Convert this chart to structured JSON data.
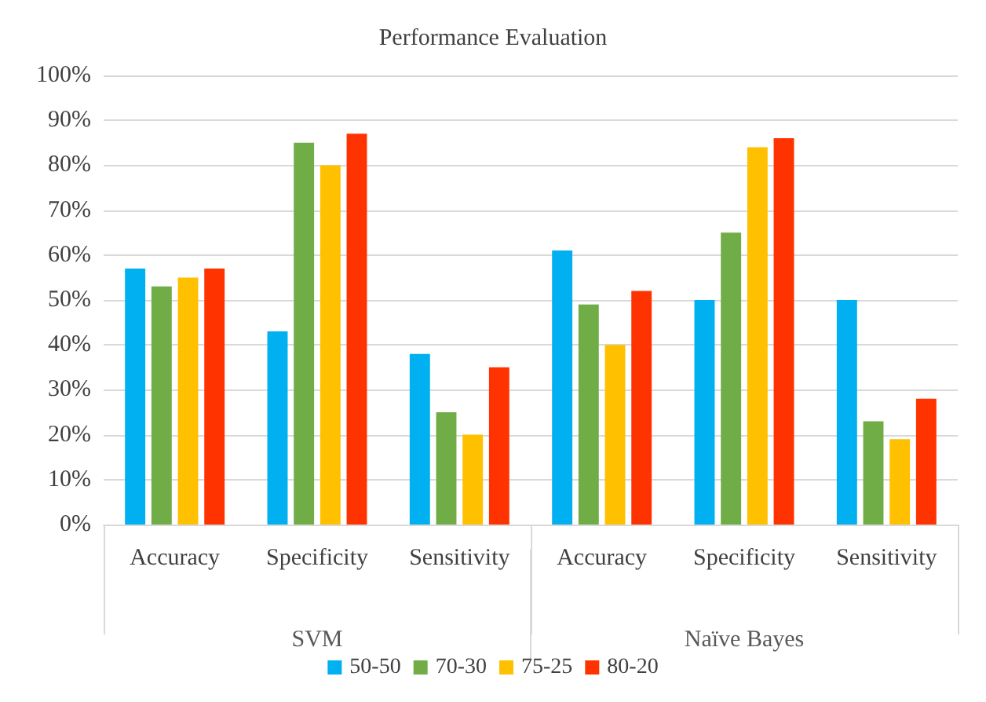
{
  "chart_data": {
    "type": "bar",
    "title": "Performance Evaluation",
    "categories": [
      "Accuracy",
      "Specificity",
      "Sensitivity",
      "Accuracy",
      "Specificity",
      "Sensitivity"
    ],
    "series": [
      {
        "name": "50-50",
        "color": "#00b0f0",
        "values": [
          0.57,
          0.43,
          0.38,
          0.61,
          0.5,
          0.5
        ]
      },
      {
        "name": "70-30",
        "color": "#70ad47",
        "values": [
          0.53,
          0.85,
          0.25,
          0.49,
          0.65,
          0.23
        ]
      },
      {
        "name": "75-25",
        "color": "#ffc000",
        "values": [
          0.55,
          0.8,
          0.2,
          0.4,
          0.84,
          0.19
        ]
      },
      {
        "name": "80-20",
        "color": "#ff3300",
        "values": [
          0.57,
          0.87,
          0.35,
          0.52,
          0.86,
          0.28
        ]
      }
    ],
    "ylim": [
      0,
      1
    ],
    "yticks": [
      {
        "value": 0,
        "label": "0%"
      },
      {
        "value": 0.1,
        "label": "10%"
      },
      {
        "value": 0.2,
        "label": "20%"
      },
      {
        "value": 0.3,
        "label": "30%"
      },
      {
        "value": 0.4,
        "label": "40%"
      },
      {
        "value": 0.5,
        "label": "50%"
      },
      {
        "value": 0.6,
        "label": "60%"
      },
      {
        "value": 0.7,
        "label": "70%"
      },
      {
        "value": 0.8,
        "label": "80%"
      },
      {
        "value": 0.9,
        "label": "90%"
      },
      {
        "value": 1,
        "label": "100%"
      }
    ],
    "annotations": [
      "SVM",
      "Naïve Bayes"
    ],
    "grid": true,
    "legend": "bottom"
  }
}
